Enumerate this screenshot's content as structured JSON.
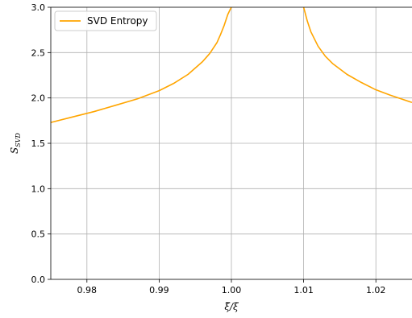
{
  "chart_data": {
    "type": "line",
    "xlabel": "ξ̃/ξ",
    "ylabel": {
      "main": "S",
      "sub": "SVD"
    },
    "xlim": [
      0.975,
      1.025
    ],
    "ylim": [
      0.0,
      3.0
    ],
    "xticks": [
      0.98,
      0.99,
      1.0,
      1.01,
      1.02
    ],
    "xtick_labels": [
      "0.98",
      "0.99",
      "1.00",
      "1.01",
      "1.02"
    ],
    "yticks": [
      0.0,
      0.5,
      1.0,
      1.5,
      2.0,
      2.5,
      3.0
    ],
    "ytick_labels": [
      "0.0",
      "0.5",
      "1.0",
      "1.5",
      "2.0",
      "2.5",
      "3.0"
    ],
    "grid": true,
    "legend_position": "top-left",
    "series": [
      {
        "name": "SVD Entropy",
        "color": "#ffa500",
        "segments": [
          {
            "x": [
              0.975,
              0.978,
              0.981,
              0.984,
              0.987,
              0.99,
              0.992,
              0.994,
              0.996,
              0.997,
              0.998,
              0.9985,
              0.999,
              0.9995,
              0.9998,
              1.0
            ],
            "y": [
              1.73,
              1.79,
              1.85,
              1.92,
              1.99,
              2.08,
              2.16,
              2.26,
              2.4,
              2.49,
              2.61,
              2.7,
              2.8,
              2.92,
              2.97,
              3.0
            ]
          },
          {
            "x": [
              1.01,
              1.0102,
              1.0105,
              1.011,
              1.012,
              1.013,
              1.014,
              1.016,
              1.018,
              1.02,
              1.022,
              1.025
            ],
            "y": [
              3.0,
              2.94,
              2.85,
              2.73,
              2.57,
              2.46,
              2.38,
              2.26,
              2.17,
              2.09,
              2.03,
              1.95
            ]
          }
        ]
      }
    ]
  }
}
